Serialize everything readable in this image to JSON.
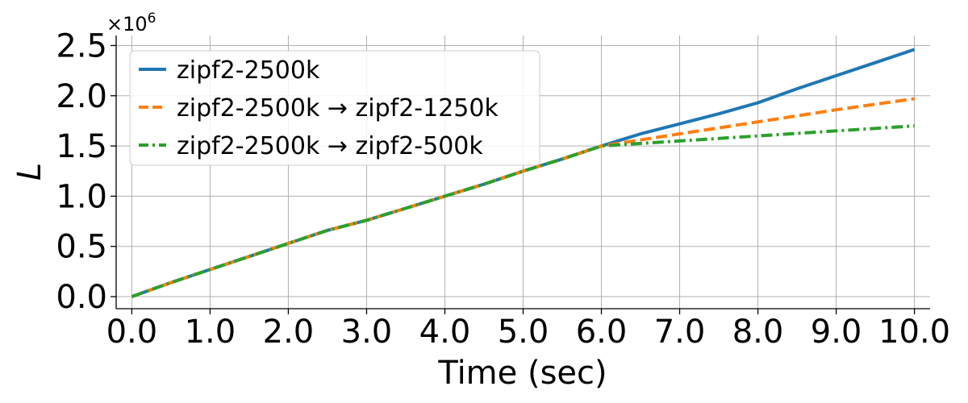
{
  "chart_data": {
    "type": "line",
    "title": "",
    "xlabel": "Time (sec)",
    "ylabel": "L",
    "y_multiplier_label": "×10",
    "y_multiplier_exponent": "6",
    "xlim": [
      -0.2,
      10.2
    ],
    "ylim": [
      -0.12,
      2.6
    ],
    "x_ticks": [
      0,
      1,
      2,
      3,
      4,
      5,
      6,
      7,
      8,
      9,
      10
    ],
    "x_tick_labels": [
      "0.0",
      "1.0",
      "2.0",
      "3.0",
      "4.0",
      "5.0",
      "6.0",
      "7.0",
      "8.0",
      "9.0",
      "10.0"
    ],
    "y_ticks": [
      0,
      0.5,
      1.0,
      1.5,
      2.0,
      2.5
    ],
    "y_tick_labels": [
      "0.0",
      "0.5",
      "1.0",
      "1.5",
      "2.0",
      "2.5"
    ],
    "grid": true,
    "legend_position": "top-left",
    "series": [
      {
        "name": "zipf2-2500k",
        "color": "#1f77b4",
        "dash": "solid",
        "x": [
          0,
          0.5,
          1,
          1.5,
          2,
          2.5,
          3,
          3.5,
          4,
          4.5,
          5,
          5.5,
          6,
          6.5,
          7,
          7.5,
          8,
          8.5,
          9,
          9.5,
          10
        ],
        "y": [
          0,
          0.14,
          0.27,
          0.4,
          0.53,
          0.66,
          0.76,
          0.88,
          1.0,
          1.12,
          1.25,
          1.37,
          1.5,
          1.62,
          1.72,
          1.82,
          1.93,
          2.07,
          2.2,
          2.33,
          2.46
        ]
      },
      {
        "name": "zipf2-2500k → zipf2-1250k",
        "color": "#ff7f0e",
        "dash": "dashed",
        "x": [
          0,
          0.5,
          1,
          1.5,
          2,
          2.5,
          3,
          3.5,
          4,
          4.5,
          5,
          5.5,
          6,
          7,
          8,
          9,
          10
        ],
        "y": [
          0,
          0.14,
          0.27,
          0.4,
          0.53,
          0.66,
          0.76,
          0.88,
          1.0,
          1.12,
          1.25,
          1.37,
          1.5,
          1.62,
          1.74,
          1.86,
          1.97
        ]
      },
      {
        "name": "zipf2-2500k → zipf2-500k",
        "color": "#2ca02c",
        "dash": "dashdot",
        "x": [
          0,
          0.5,
          1,
          1.5,
          2,
          2.5,
          3,
          3.5,
          4,
          4.5,
          5,
          5.5,
          6,
          7,
          8,
          9,
          10
        ],
        "y": [
          0,
          0.14,
          0.27,
          0.4,
          0.53,
          0.66,
          0.76,
          0.88,
          1.0,
          1.12,
          1.25,
          1.37,
          1.5,
          1.55,
          1.6,
          1.65,
          1.7
        ]
      }
    ]
  }
}
